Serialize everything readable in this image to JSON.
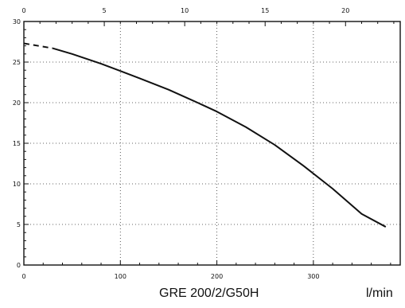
{
  "chart_data": {
    "type": "line",
    "title": "",
    "model_label": "GRE 200/2/G50H",
    "x_unit_label": "l/min",
    "x_bottom": {
      "lim": [
        0,
        390
      ],
      "ticks": [
        0,
        100,
        200,
        300
      ]
    },
    "x_top": {
      "lim": [
        0,
        23.4
      ],
      "ticks": [
        0,
        5,
        10,
        15,
        20
      ]
    },
    "y": {
      "lim": [
        0,
        30
      ],
      "ticks": [
        0,
        5,
        10,
        15,
        20,
        25,
        30
      ]
    },
    "grid": true,
    "colors": {
      "line": "#111111",
      "grid": "#333333"
    },
    "series": [
      {
        "dashed_segment": {
          "x": [
            0,
            30
          ],
          "y": [
            27.3,
            26.7
          ]
        },
        "x": [
          30,
          50,
          80,
          100,
          120,
          150,
          180,
          200,
          230,
          260,
          290,
          320,
          350,
          375
        ],
        "y": [
          26.7,
          26.0,
          24.8,
          23.9,
          23.0,
          21.6,
          20.0,
          18.9,
          17.0,
          14.8,
          12.2,
          9.4,
          6.3,
          4.7
        ]
      }
    ]
  }
}
